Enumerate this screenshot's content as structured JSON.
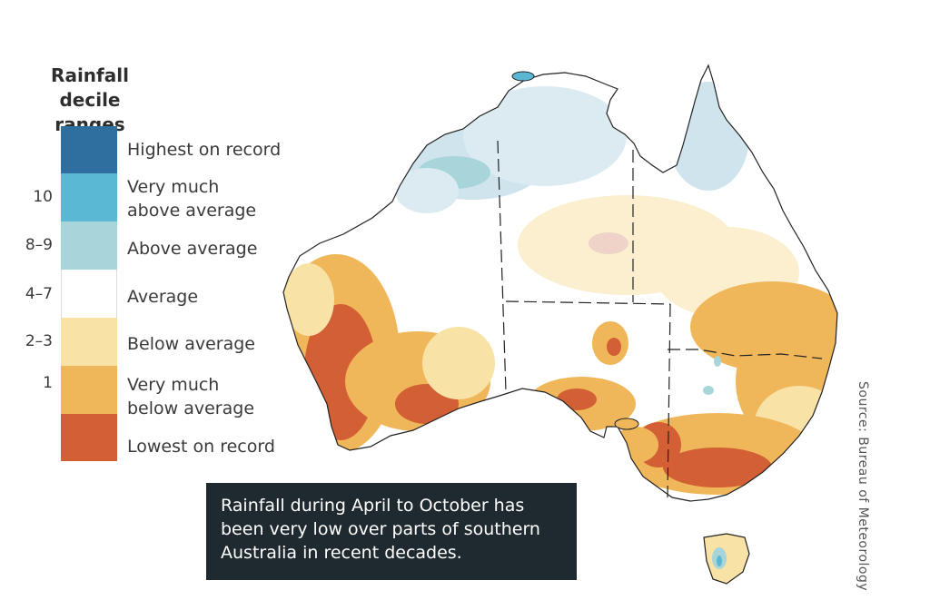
{
  "legend": {
    "title_line1": "Rainfall",
    "title_line2": "decile ranges",
    "categories": [
      {
        "label_line1": "Highest on record",
        "label_line2": "",
        "decile": "",
        "color": "#2f6f9f"
      },
      {
        "label_line1": "Very much",
        "label_line2": "above average",
        "decile": "10",
        "color": "#5bb8d4"
      },
      {
        "label_line1": "Above average",
        "label_line2": "",
        "decile": "8–9",
        "color": "#a8d5da"
      },
      {
        "label_line1": "Average",
        "label_line2": "",
        "decile": "4–7",
        "color": "#ffffff"
      },
      {
        "label_line1": "Below average",
        "label_line2": "",
        "decile": "2–3",
        "color": "#f8e2a6"
      },
      {
        "label_line1": "Very much",
        "label_line2": "below average",
        "decile": "1",
        "color": "#f0b75a"
      },
      {
        "label_line1": "Lowest on record",
        "label_line2": "",
        "decile": "",
        "color": "#d35f35"
      }
    ]
  },
  "caption": {
    "line1": "Rainfall during April to October has",
    "line2": "been very low over parts of southern",
    "line3": "Australia in recent decades."
  },
  "source": "Source: Bureau of Meteorology"
}
